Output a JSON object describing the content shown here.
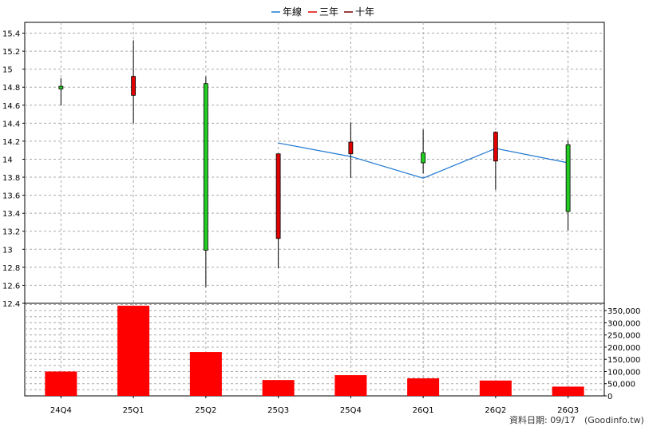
{
  "legend": [
    {
      "label": "年線",
      "color": "#1e78d2"
    },
    {
      "label": "三年",
      "color": "#e00000"
    },
    {
      "label": "十年",
      "color": "#7a0000"
    }
  ],
  "footer": {
    "label": "資料日期: 09/17",
    "source": "(Goodinfo.tw)"
  },
  "colors": {
    "up": "#e00000",
    "down": "#22cc22",
    "volume": "#ff0000",
    "annual_line": "#1e78d2",
    "grid": "#aaaaaa"
  },
  "chart_data": [
    {
      "type": "candlestick",
      "categories": [
        "24Q4",
        "25Q1",
        "25Q2",
        "25Q3",
        "25Q4",
        "26Q1",
        "26Q2",
        "26Q3"
      ],
      "ohlc": [
        {
          "open": 14.81,
          "high": 14.9,
          "low": 14.6,
          "close": 14.78
        },
        {
          "open": 14.71,
          "high": 15.32,
          "low": 14.4,
          "close": 14.92
        },
        {
          "open": 14.84,
          "high": 14.92,
          "low": 12.58,
          "close": 12.99
        },
        {
          "open": 13.12,
          "high": 14.06,
          "low": 12.79,
          "close": 14.06
        },
        {
          "open": 14.06,
          "high": 14.41,
          "low": 13.79,
          "close": 14.19
        },
        {
          "open": 14.07,
          "high": 14.33,
          "low": 13.84,
          "close": 13.96
        },
        {
          "open": 13.98,
          "high": 14.31,
          "low": 13.66,
          "close": 14.3
        },
        {
          "open": 14.16,
          "high": 14.21,
          "low": 13.21,
          "close": 13.42
        }
      ],
      "annual_line": {
        "name": "年線",
        "values": [
          null,
          null,
          null,
          14.18,
          14.03,
          13.79,
          14.12,
          13.96
        ]
      },
      "y_ticks": [
        "12.4",
        "12.6",
        "12.8",
        "13",
        "13.2",
        "13.4",
        "13.6",
        "13.8",
        "14",
        "14.2",
        "14.4",
        "14.6",
        "14.8",
        "15",
        "15.2",
        "15.4"
      ],
      "ylim": [
        12.4,
        15.52
      ],
      "grid": true,
      "legend_position": "top-center"
    },
    {
      "type": "bar",
      "categories": [
        "24Q4",
        "25Q1",
        "25Q2",
        "25Q3",
        "25Q4",
        "26Q1",
        "26Q2",
        "26Q3"
      ],
      "values": [
        100000,
        370000,
        180000,
        65000,
        85000,
        72000,
        63000,
        38000
      ],
      "y_ticks": [
        "0",
        "50,000",
        "100,000",
        "150,000",
        "200,000",
        "250,000",
        "300,000",
        "350,000"
      ],
      "ylim": [
        0,
        380000
      ],
      "grid": true
    }
  ]
}
